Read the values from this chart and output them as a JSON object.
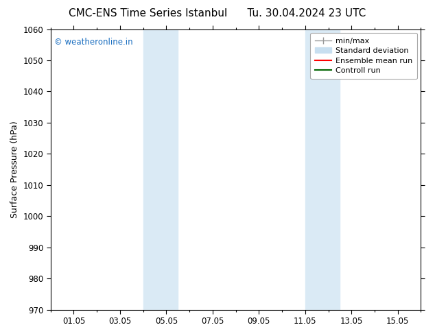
{
  "title_left": "CMC-ENS Time Series Istanbul",
  "title_right": "Tu. 30.04.2024 23 UTC",
  "ylabel": "Surface Pressure (hPa)",
  "ylim": [
    970,
    1060
  ],
  "yticks": [
    970,
    980,
    990,
    1000,
    1010,
    1020,
    1030,
    1040,
    1050,
    1060
  ],
  "xtick_labels": [
    "01.05",
    "03.05",
    "05.05",
    "07.05",
    "09.05",
    "11.05",
    "13.05",
    "15.05"
  ],
  "xtick_positions": [
    1,
    3,
    5,
    7,
    9,
    11,
    13,
    15
  ],
  "xlim": [
    0,
    16
  ],
  "shaded_regions": [
    {
      "start": 4.0,
      "end": 5.5,
      "color": "#daeaf5"
    },
    {
      "start": 11.0,
      "end": 12.5,
      "color": "#daeaf5"
    }
  ],
  "watermark": "© weatheronline.in",
  "watermark_color": "#1a6ec0",
  "background_color": "#ffffff",
  "plot_bg_color": "#ffffff",
  "title_fontsize": 11,
  "axis_fontsize": 9,
  "tick_fontsize": 8.5,
  "legend_fontsize": 8
}
